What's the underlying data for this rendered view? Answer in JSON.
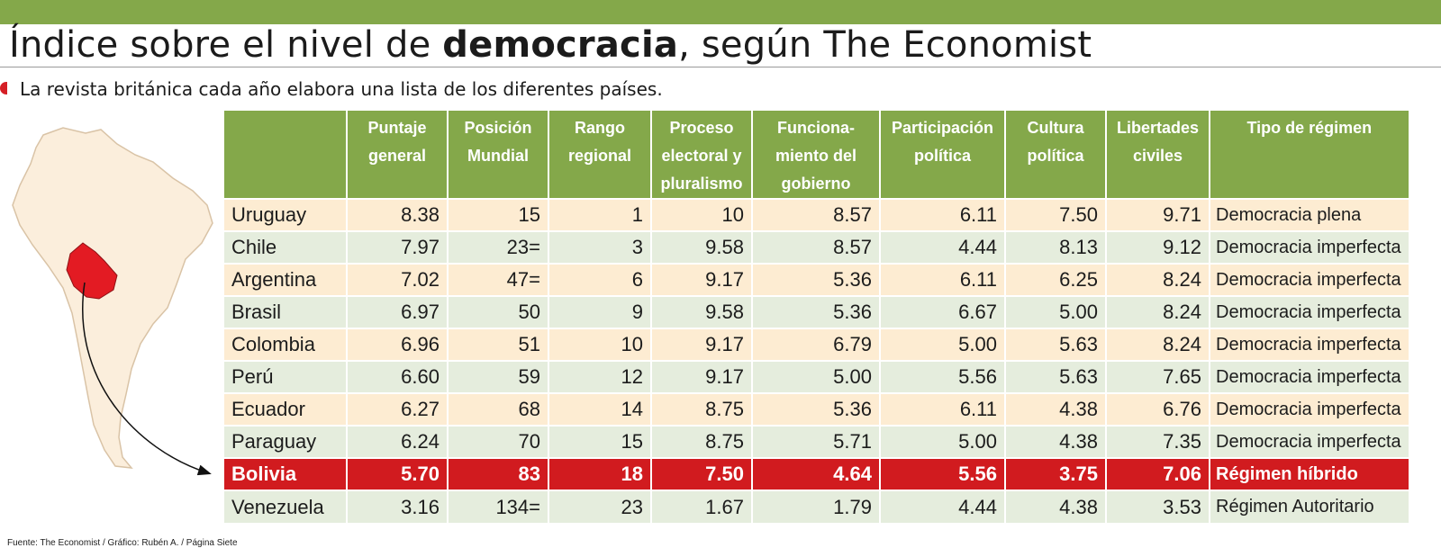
{
  "title": {
    "pre": "Índice sobre el nivel de ",
    "bold": "democracia",
    "post": ", según The Economist"
  },
  "subtitle": "La revista británica cada año elabora una lista de los diferentes países.",
  "source": "Fuente:  The Economist / Gráfico: Rubén A. / Página Siete",
  "colors": {
    "header_green": "#84a84a",
    "highlight_red": "#d11b1f",
    "row_cream": "#fdecd2",
    "row_green": "#e5eddd",
    "map_fill": "#fbeedc"
  },
  "table": {
    "headers": [
      "",
      "Puntaje\ngeneral",
      "Posición\nMundial",
      "Rango\nregional",
      "Proceso\nelectoral y\npluralismo",
      "Funciona-\nmiento del\ngobierno",
      "Participación\npolítica",
      "Cultura\npolítica",
      "Libertades\nciviles",
      "Tipo de régimen"
    ],
    "rows": [
      [
        "Uruguay",
        "8.38",
        "15",
        "1",
        "10",
        "8.57",
        "6.11",
        "7.50",
        "9.71",
        "Democracia plena"
      ],
      [
        "Chile",
        "7.97",
        "23=",
        "3",
        "9.58",
        "8.57",
        "4.44",
        "8.13",
        "9.12",
        "Democracia imperfecta"
      ],
      [
        "Argentina",
        "7.02",
        "47=",
        "6",
        "9.17",
        "5.36",
        "6.11",
        "6.25",
        "8.24",
        "Democracia imperfecta"
      ],
      [
        "Brasil",
        "6.97",
        "50",
        "9",
        "9.58",
        "5.36",
        "6.67",
        "5.00",
        "8.24",
        "Democracia imperfecta"
      ],
      [
        "Colombia",
        "6.96",
        "51",
        "10",
        "9.17",
        "6.79",
        "5.00",
        "5.63",
        "8.24",
        "Democracia imperfecta"
      ],
      [
        "Perú",
        "6.60",
        "59",
        "12",
        "9.17",
        "5.00",
        "5.56",
        "5.63",
        "7.65",
        "Democracia imperfecta"
      ],
      [
        "Ecuador",
        "6.27",
        "68",
        "14",
        "8.75",
        "5.36",
        "6.11",
        "4.38",
        "6.76",
        "Democracia imperfecta"
      ],
      [
        "Paraguay",
        "6.24",
        "70",
        "15",
        "8.75",
        "5.71",
        "5.00",
        "4.38",
        "7.35",
        "Democracia imperfecta"
      ],
      [
        "Bolivia",
        "5.70",
        "83",
        "18",
        "7.50",
        "4.64",
        "5.56",
        "3.75",
        "7.06",
        "Régimen híbrido"
      ],
      [
        "Venezuela",
        "3.16",
        "134=",
        "23",
        "1.67",
        "1.79",
        "4.44",
        "4.38",
        "3.53",
        "Régimen Autoritario"
      ]
    ],
    "highlight_row": 8
  }
}
